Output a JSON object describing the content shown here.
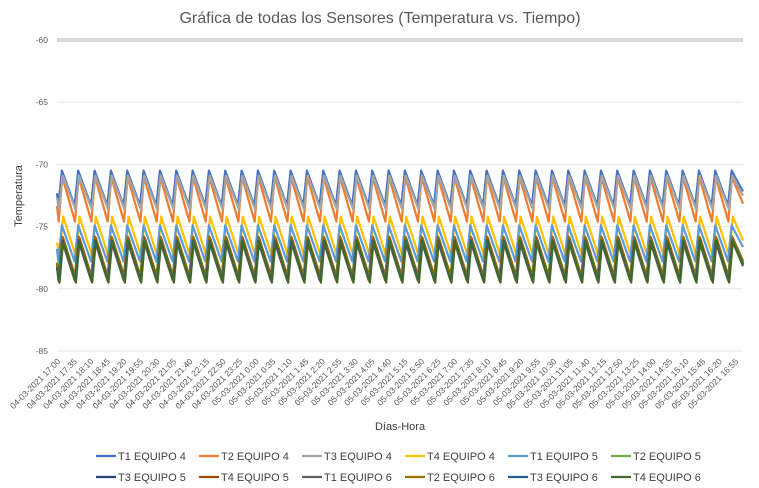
{
  "chart_data": {
    "type": "line",
    "title": "Gráfica de todas los Sensores (Temperatura vs. Tiempo)",
    "xlabel": "Días-Hora",
    "ylabel": "Temperatura",
    "ylim": [
      -85,
      -60
    ],
    "yticks": [
      -60,
      -65,
      -70,
      -75,
      -80,
      -85
    ],
    "grid": true,
    "legend_position": "bottom",
    "x_tick_labels": [
      "04-03-2021 17:00",
      "04-03-2021 17:35",
      "04-03-2021 18:10",
      "04-03-2021 18:45",
      "04-03-2021 19:20",
      "04-03-2021 19:55",
      "04-03-2021 20:30",
      "04-03-2021 21:05",
      "04-03-2021 21:40",
      "04-03-2021 22:15",
      "04-03-2021 22:50",
      "04-03-2021 23:25",
      "05-03-2021 0:00",
      "05-03-2021 0:35",
      "05-03-2021 1:10",
      "05-03-2021 1:45",
      "05-03-2021 2:20",
      "05-03-2021 2:55",
      "05-03-2021 3:30",
      "05-03-2021 4:05",
      "05-03-2021 4:40",
      "05-03-2021 5:15",
      "05-03-2021 5:50",
      "05-03-2021 6:25",
      "05-03-2021 7:00",
      "05-03-2021 7:35",
      "05-03-2021 8:10",
      "05-03-2021 8:45",
      "05-03-2021 9:20",
      "05-03-2021 9:55",
      "05-03-2021 10:30",
      "05-03-2021 11:05",
      "05-03-2021 11:40",
      "05-03-2021 12:15",
      "05-03-2021 12:50",
      "05-03-2021 13:25",
      "05-03-2021 14:00",
      "05-03-2021 14:35",
      "05-03-2021 15:10",
      "05-03-2021 15:45",
      "05-03-2021 16:20",
      "05-03-2021 16:55"
    ],
    "cycles": 42,
    "series": [
      {
        "name": "T1 EQUIPO 4",
        "color": "#4472c4",
        "min": -73.3,
        "max": -70.5
      },
      {
        "name": "T2 EQUIPO 4",
        "color": "#ed7d31",
        "min": -74.6,
        "max": -71.0
      },
      {
        "name": "T3 EQUIPO 4",
        "color": "#a5a5a5",
        "min": -73.6,
        "max": -70.9
      },
      {
        "name": "T4 EQUIPO 4",
        "color": "#ffc000",
        "min": -77.4,
        "max": -74.2
      },
      {
        "name": "T1 EQUIPO 5",
        "color": "#5b9bd5",
        "min": -77.8,
        "max": -74.9
      },
      {
        "name": "T2 EQUIPO 5",
        "color": "#70ad47",
        "min": -79.0,
        "max": -75.8
      },
      {
        "name": "T3 EQUIPO 5",
        "color": "#264478",
        "min": -79.3,
        "max": -76.0
      },
      {
        "name": "T4 EQUIPO 5",
        "color": "#9e480e",
        "min": -79.2,
        "max": -75.9
      },
      {
        "name": "T1 EQUIPO 6",
        "color": "#636363",
        "min": -79.3,
        "max": -76.1
      },
      {
        "name": "T2 EQUIPO 6",
        "color": "#997300",
        "min": -79.1,
        "max": -75.8
      },
      {
        "name": "T3 EQUIPO 6",
        "color": "#255e91",
        "min": -79.4,
        "max": -76.1
      },
      {
        "name": "T4 EQUIPO 6",
        "color": "#43682b",
        "min": -79.5,
        "max": -76.2
      }
    ]
  }
}
